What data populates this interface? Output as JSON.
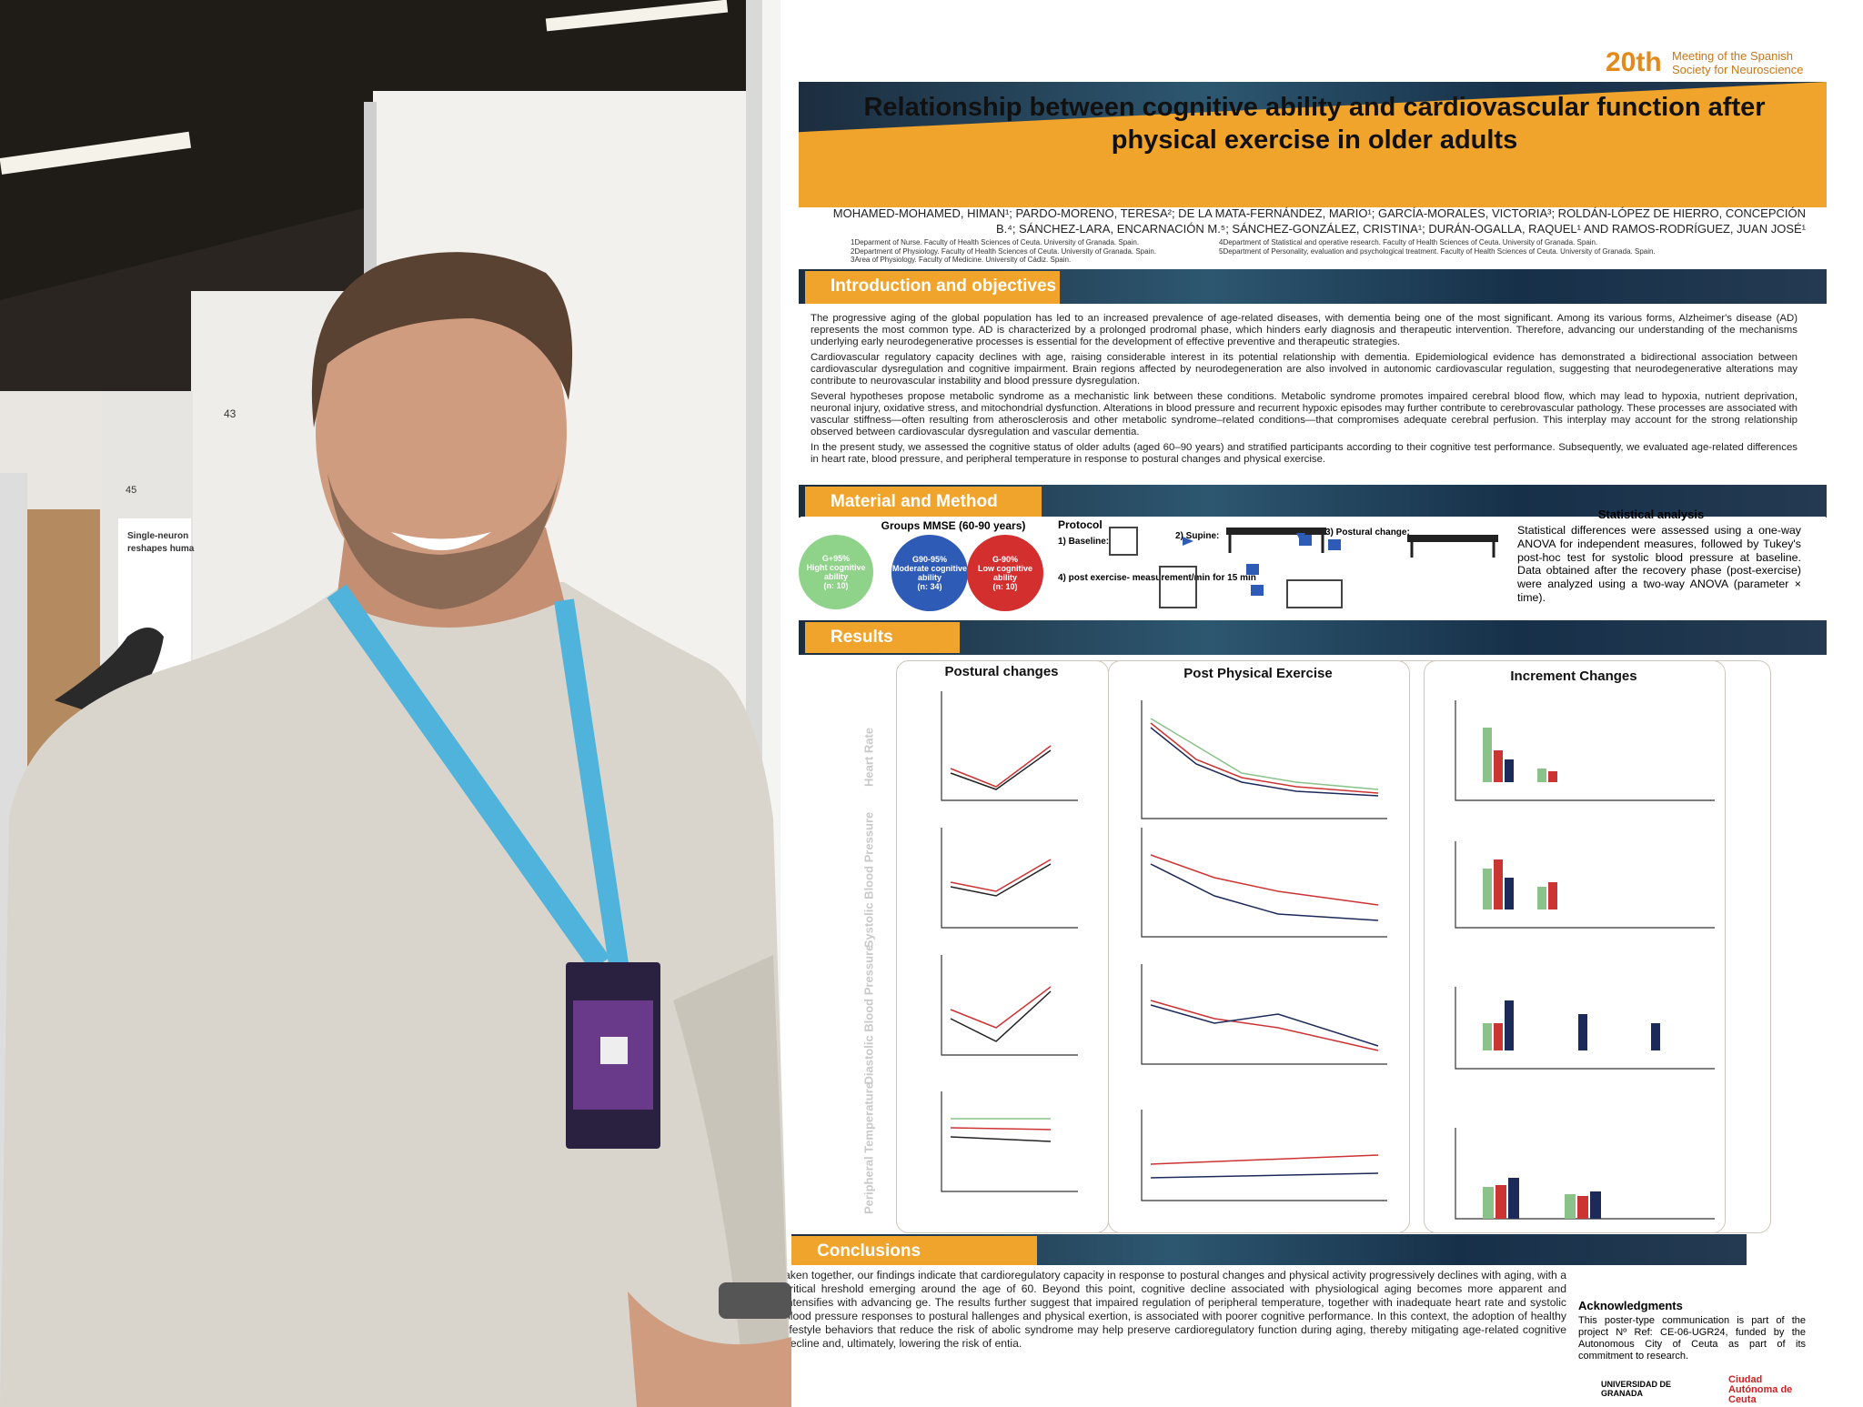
{
  "booth": {
    "board_numbers": [
      "43",
      "45"
    ],
    "neighbor_poster_title": "Single-neuron",
    "neighbor_poster_title_2": "reshapes huma"
  },
  "poster": {
    "meeting": {
      "edition": "20th",
      "name": "Meeting of the Spanish Society for Neuroscience"
    },
    "title": "Relationship between cognitive ability and cardiovascular function after physical exercise in older adults",
    "authors": "MOHAMED-MOHAMED, HIMAN¹; PARDO-MORENO, TERESA²; DE LA MATA-FERNÁNDEZ, MARIO¹; GARCÍA-MORALES, VICTORIA³; ROLDÁN-LÓPEZ DE HIERRO, CONCEPCIÓN B.⁴; SÁNCHEZ-LARA, ENCARNACIÓN M.⁵; SÁNCHEZ-GONZÁLEZ, CRISTINA¹; DURÁN-OGALLA, RAQUEL¹ AND RAMOS-RODRÍGUEZ, JUAN JOSÉ¹",
    "affiliations": [
      "1Deparment of Nurse. Faculty of Health Sciences of Ceuta. University of Granada. Spain.",
      "2Department of Physiology. Faculty of Health Sciences of Ceuta. University of Granada. Spain.",
      "3Area of Physiology. Faculty of Medicine. University of Cádiz. Spain.",
      "4Department of Statistical and operative research. Faculty of Health Sciences of Ceuta. University of Granada. Spain.",
      "5Department of Personality, evaluation and psychological treatment. Faculty of Health Sciences of Ceuta. University of Granada. Spain."
    ],
    "introduction": {
      "heading": "Introduction and objectives",
      "paragraphs": [
        "The progressive aging of the global population has led to an increased prevalence of age-related diseases, with dementia being one of the most significant. Among its various forms, Alzheimer's disease (AD) represents the most common type. AD is characterized by a prolonged prodromal phase, which hinders early diagnosis and therapeutic intervention. Therefore, advancing our understanding of the mechanisms underlying early neurodegenerative processes is essential for the development of effective preventive and therapeutic strategies.",
        "Cardiovascular regulatory capacity declines with age, raising considerable interest in its potential relationship with dementia. Epidemiological evidence has demonstrated a bidirectional association between cardiovascular dysregulation and cognitive impairment. Brain regions affected by neurodegeneration are also involved in autonomic cardiovascular regulation, suggesting that neurodegenerative alterations may contribute to neurovascular instability and blood pressure dysregulation.",
        "Several hypotheses propose metabolic syndrome as a mechanistic link between these conditions. Metabolic syndrome promotes impaired cerebral blood flow, which may lead to hypoxia, nutrient deprivation, neuronal injury, oxidative stress, and mitochondrial dysfunction. Alterations in blood pressure and recurrent hypoxic episodes may further contribute to cerebrovascular pathology. These processes are associated with vascular stiffness—often resulting from atherosclerosis and other metabolic syndrome–related conditions—that compromises adequate cerebral perfusion. This interplay may account for the strong relationship observed between cardiovascular dysregulation and vascular dementia.",
        "In the present study, we assessed the cognitive status of older adults (aged 60–90 years) and stratified participants according to their cognitive test performance. Subsequently, we evaluated age-related differences in heart rate, blood pressure, and peripheral temperature in response to postural changes and physical exercise."
      ]
    },
    "methods": {
      "heading": "Material and Method",
      "groups_title": "Groups MMSE (60-90 years)",
      "groups": [
        {
          "code": "G+95%",
          "label": "Hight cognitive ability",
          "n": "(n: 10)"
        },
        {
          "code": "G90-95%",
          "label": "Moderate cognitive ability",
          "n": "(n: 34)"
        },
        {
          "code": "G-90%",
          "label": "Low cognitive ability",
          "n": "(n: 10)"
        }
      ],
      "protocol_title": "Protocol",
      "protocol_steps": [
        "1) Baseline:",
        "2) Supine:",
        "3) Postural change:",
        "4) post exercise- measurement/min for 15 min"
      ],
      "stats_title": "Statistical analysis",
      "stats_text": "Statistical differences were assessed using a one-way ANOVA for independent measures, followed by Tukey's post-hoc test for systolic blood pressure at baseline. Data obtained after the recovery phase (post-exercise) were analyzed using a two-way ANOVA (parameter × time)."
    },
    "results": {
      "heading": "Results",
      "columns": [
        "Postural changes",
        "Post Physical Exercise",
        "Increment Changes"
      ],
      "rows": [
        "Heart Rate",
        "Systolic Blood Pressure",
        "Diastolic Blood Pressure",
        "Peripheral Temperature"
      ]
    },
    "conclusions": {
      "heading": "Conclusions",
      "text": "aken together, our findings indicate that cardioregulatory capacity in response to postural changes and physical activity progressively declines with aging, with a critical hreshold emerging around the age of 60. Beyond this point, cognitive decline associated with physiological aging becomes more apparent and intensifies with advancing ge. The results further suggest that impaired regulation of peripheral temperature, together with inadequate heart rate and systolic blood pressure responses to postural hallenges and physical exertion, is associated with poorer cognitive performance. In this context, the adoption of healthy lifestyle behaviors that reduce the risk of abolic syndrome may help preserve cardioregulatory function during aging, thereby mitigating age-related cognitive decline and, ultimately, lowering the risk of entia."
    },
    "acknowledgments": {
      "heading": "Acknowledgments",
      "text": "This poster-type communication is part of the project Nº Ref: CE-06-UGR24, funded by the Autonomous City of Ceuta as part of its commitment to research."
    },
    "logos": [
      "UNIVERSIDAD DE GRANADA",
      "Ciudad Autónoma de Ceuta"
    ]
  }
}
